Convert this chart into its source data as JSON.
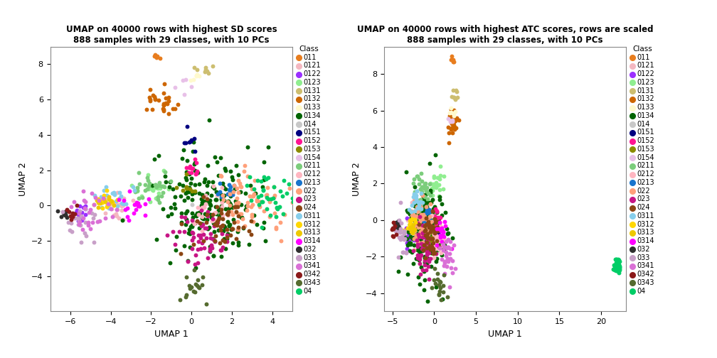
{
  "title1": "UMAP on 40000 rows with highest SD scores\n888 samples with 29 classes, with 10 PCs",
  "title2": "UMAP on 40000 rows with highest ATC scores, rows are scaled\n888 samples with 29 classes, with 10 PCs",
  "xlabel": "UMAP 1",
  "ylabel": "UMAP 2",
  "classes": [
    "011",
    "0121",
    "0122",
    "0123",
    "0131",
    "0132",
    "0133",
    "0134",
    "014",
    "0151",
    "0152",
    "0153",
    "0154",
    "0211",
    "0212",
    "0213",
    "022",
    "023",
    "024",
    "0311",
    "0312",
    "0313",
    "0314",
    "032",
    "033",
    "0341",
    "0342",
    "0343",
    "04"
  ],
  "colors": [
    "#E87D1E",
    "#F4B8C1",
    "#9B30FF",
    "#90EE90",
    "#CDBE70",
    "#CD6600",
    "#FFFACD",
    "#006400",
    "#C8C8C8",
    "#000080",
    "#FF1493",
    "#8B8B00",
    "#E8C0E8",
    "#7CCD7C",
    "#FFB6C1",
    "#1874CD",
    "#FFA07A",
    "#C71585",
    "#8B4513",
    "#87CEEB",
    "#FFD700",
    "#EEC900",
    "#FF00FF",
    "#2F2F2F",
    "#C8A0C8",
    "#DA70D6",
    "#8B1A1A",
    "#556B2F",
    "#00CD66"
  ],
  "xlim1": [
    -7,
    5
  ],
  "ylim1": [
    -6,
    9
  ],
  "xticks1": [
    -6,
    -4,
    -2,
    0,
    2,
    4
  ],
  "yticks1": [
    -4,
    -2,
    0,
    2,
    4,
    6,
    8
  ],
  "xlim2": [
    -6,
    23
  ],
  "ylim2": [
    -5,
    9.5
  ],
  "xticks2": [
    -5,
    0,
    5,
    10,
    15,
    20
  ],
  "yticks2": [
    -4,
    -2,
    0,
    2,
    4,
    6,
    8
  ],
  "point_size": 18,
  "bg_color": "#FFFFFF",
  "panel_bg": "#FFFFFF"
}
